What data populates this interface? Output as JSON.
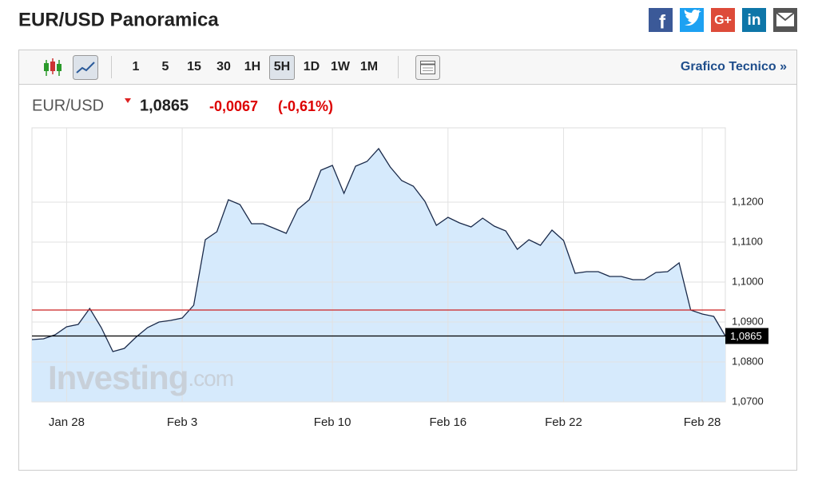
{
  "header": {
    "title": "EUR/USD Panoramica",
    "share": [
      "f",
      "G+",
      "in"
    ]
  },
  "toolbar": {
    "intervals": [
      "1",
      "5",
      "15",
      "30",
      "1H",
      "5H",
      "1D",
      "1W",
      "1M"
    ],
    "link": "Grafico Tecnico »"
  },
  "quote": {
    "symbol": "EUR/USD",
    "price": "1,0865",
    "change": "-0,0067",
    "change_pct": "(-0,61%)"
  },
  "chart_data": {
    "type": "line",
    "watermark": [
      "Investing",
      ".com"
    ],
    "categories": [
      null,
      null,
      null,
      "Jan 28",
      null,
      null,
      null,
      null,
      null,
      null,
      null,
      null,
      null,
      "Feb 3",
      null,
      null,
      null,
      null,
      null,
      null,
      null,
      null,
      null,
      null,
      null,
      null,
      "Feb 10",
      null,
      null,
      null,
      null,
      null,
      null,
      null,
      null,
      null,
      "Feb 16",
      null,
      null,
      null,
      null,
      null,
      null,
      null,
      null,
      null,
      "Feb 22",
      null,
      null,
      null,
      null,
      null,
      null,
      null,
      null,
      null,
      null,
      null,
      "Feb 28",
      null,
      null
    ],
    "values": [
      1.0856,
      1.0858,
      1.0868,
      1.0888,
      1.0894,
      1.0934,
      1.0886,
      1.0826,
      1.0834,
      1.0862,
      1.0886,
      1.09,
      1.0904,
      1.091,
      1.0942,
      1.1106,
      1.1126,
      1.1206,
      1.1194,
      1.1146,
      1.1146,
      1.1134,
      1.1122,
      1.1182,
      1.1206,
      1.128,
      1.1292,
      1.1222,
      1.129,
      1.1302,
      1.1334,
      1.1288,
      1.1254,
      1.124,
      1.1202,
      1.1142,
      1.1162,
      1.1148,
      1.1138,
      1.116,
      1.114,
      1.1128,
      1.1082,
      1.1106,
      1.1092,
      1.113,
      1.1104,
      1.1022,
      1.1026,
      1.1026,
      1.1014,
      1.1014,
      1.1006,
      1.1006,
      1.1024,
      1.1026,
      1.1048,
      1.093,
      1.092,
      1.0914,
      1.0865
    ],
    "color": "#1a2a4a",
    "fill": "#d6eafc",
    "ylim": [
      1.07,
      1.1386
    ],
    "yticks": [
      {
        "value": 1.07,
        "label": "1,0700"
      },
      {
        "value": 1.08,
        "label": "1,0800"
      },
      {
        "value": 1.09,
        "label": "1,0900"
      },
      {
        "value": 1.1,
        "label": "1,1000"
      },
      {
        "value": 1.11,
        "label": "1,1100"
      },
      {
        "value": 1.12,
        "label": "1,1200"
      }
    ],
    "grid": true,
    "reference_lines": [
      {
        "value": 1.093,
        "color": "#cc2222"
      },
      {
        "value": 1.0865,
        "color": "#000000",
        "label": "1,0865"
      }
    ]
  }
}
